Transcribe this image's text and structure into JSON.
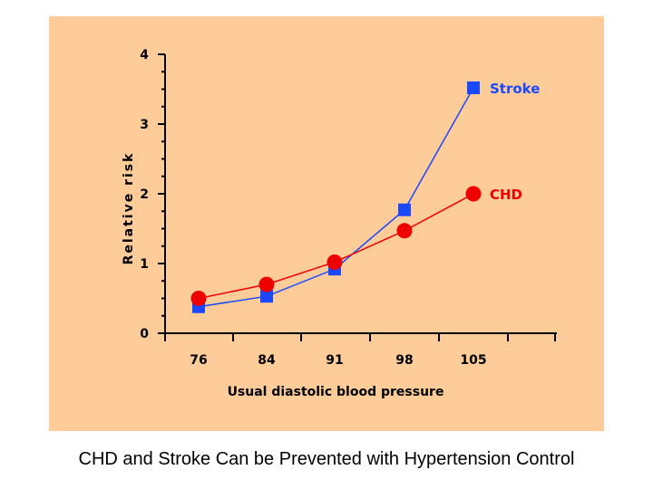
{
  "caption": "CHD and Stroke Can be Prevented with Hypertension Control",
  "colors": {
    "panel_background": "#fdcc99",
    "stroke_series": "#1a48ff",
    "chd_series": "#ee0000"
  },
  "chart_data": {
    "type": "line",
    "title": "",
    "xlabel": "Usual diastolic blood pressure",
    "ylabel": "Relative risk",
    "categories": [
      "76",
      "84",
      "91",
      "98",
      "105"
    ],
    "ylim": [
      0,
      4
    ],
    "yticks": [
      "0",
      "1",
      "2",
      "3",
      "4"
    ],
    "grid": false,
    "legend": "inline labels at right end of each series",
    "series": [
      {
        "name": "Stroke",
        "marker": "square",
        "color": "#1a48ff",
        "values": [
          0.38,
          0.53,
          0.92,
          1.77,
          3.52
        ]
      },
      {
        "name": "CHD",
        "marker": "circle",
        "color": "#ee0000",
        "values": [
          0.5,
          0.7,
          1.02,
          1.47,
          2.0
        ]
      }
    ]
  }
}
